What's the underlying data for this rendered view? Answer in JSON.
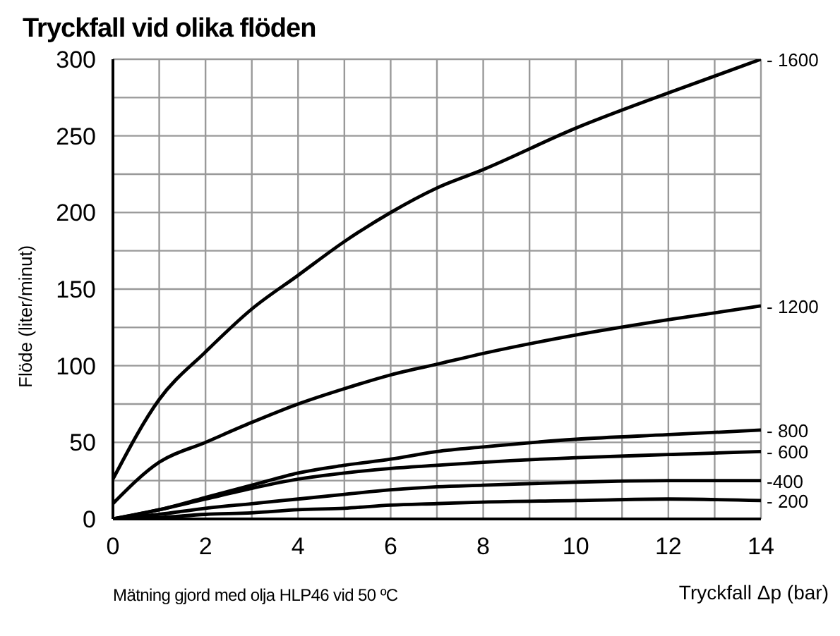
{
  "chart_data": {
    "type": "line",
    "title": "Tryckfall vid olika flöden",
    "xlabel": "Tryckfall Δp (bar)",
    "ylabel": "Flöde (liter/minut)",
    "annotations": [
      "Mätning gjord med olja HLP46 vid 50 ºC"
    ],
    "x": [
      0,
      1,
      2,
      3,
      4,
      5,
      6,
      7,
      8,
      10,
      12,
      14
    ],
    "series": [
      {
        "name": "- 1600",
        "color": "#000000",
        "values": [
          26,
          78,
          109,
          137,
          159,
          181,
          200,
          216,
          228,
          255,
          278,
          300
        ]
      },
      {
        "name": "- 1200",
        "color": "#000000",
        "values": [
          10,
          37,
          50,
          63,
          75,
          85,
          94,
          101,
          108,
          120,
          130,
          139
        ]
      },
      {
        "name": "- 800",
        "color": "#000000",
        "values": [
          0,
          6,
          14,
          22,
          30,
          35,
          39,
          44,
          47,
          52,
          55,
          58
        ]
      },
      {
        "name": "- 600",
        "color": "#000000",
        "values": [
          0,
          6,
          13,
          20,
          26,
          30,
          33,
          35,
          37,
          40,
          42,
          44
        ]
      },
      {
        "name": "-400",
        "color": "#000000",
        "values": [
          0,
          3,
          7,
          10,
          13,
          16,
          19,
          21,
          22,
          24,
          25,
          25
        ]
      },
      {
        "name": "- 200",
        "color": "#000000",
        "values": [
          0,
          1,
          3,
          4,
          6,
          7,
          9,
          10,
          11,
          12,
          13,
          12
        ]
      }
    ],
    "xlim": [
      0,
      14
    ],
    "xticks": [
      0,
      {
        "value": 1,
        "label": null
      },
      2,
      {
        "value": 3,
        "label": null
      },
      4,
      {
        "value": 5,
        "label": null
      },
      6,
      {
        "value": 7,
        "label": null
      },
      8,
      {
        "value": 9,
        "label": null
      },
      10,
      {
        "value": 11,
        "label": null
      },
      12,
      {
        "value": 13,
        "label": null
      },
      14
    ],
    "ylim": [
      0,
      300
    ],
    "yticks": [
      0,
      {
        "value": 25,
        "label": null
      },
      50,
      {
        "value": 75,
        "label": null
      },
      100,
      {
        "value": 125,
        "label": null
      },
      150,
      {
        "value": 175,
        "label": null
      },
      200,
      {
        "value": 225,
        "label": null
      },
      250,
      {
        "value": 275,
        "label": null
      },
      300
    ],
    "grid": true,
    "legend": false,
    "marker": "none",
    "line_style": "solid"
  }
}
